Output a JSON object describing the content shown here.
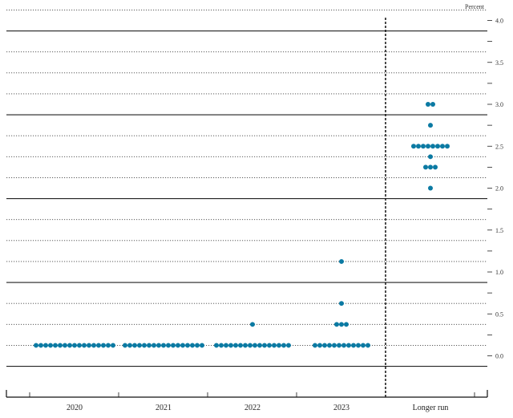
{
  "chart_data": {
    "type": "scatter",
    "unit_label": "Percent",
    "yticks": [
      "4.0",
      "3.5",
      "3.0",
      "2.5",
      "2.0",
      "1.5",
      "1.0",
      "0.5",
      "0.0"
    ],
    "ylim": [
      -0.125,
      4.125
    ],
    "grid": true,
    "categories": [
      "2020",
      "2021",
      "2022",
      "2023",
      "Longer run"
    ],
    "dot_color": "#0b7aa3",
    "series": [
      {
        "category": "2020",
        "points": [
          {
            "y": 0.125,
            "count": 17
          }
        ]
      },
      {
        "category": "2021",
        "points": [
          {
            "y": 0.125,
            "count": 17
          }
        ]
      },
      {
        "category": "2022",
        "points": [
          {
            "y": 0.125,
            "count": 16
          },
          {
            "y": 0.375,
            "count": 1
          }
        ]
      },
      {
        "category": "2023",
        "points": [
          {
            "y": 0.125,
            "count": 12
          },
          {
            "y": 0.375,
            "count": 3
          },
          {
            "y": 0.625,
            "count": 1
          },
          {
            "y": 1.125,
            "count": 1
          }
        ]
      },
      {
        "category": "Longer run",
        "points": [
          {
            "y": 2.0,
            "count": 1
          },
          {
            "y": 2.25,
            "count": 3
          },
          {
            "y": 2.375,
            "count": 1
          },
          {
            "y": 2.5,
            "count": 8
          },
          {
            "y": 2.75,
            "count": 1
          },
          {
            "y": 3.0,
            "count": 2
          }
        ]
      }
    ]
  }
}
